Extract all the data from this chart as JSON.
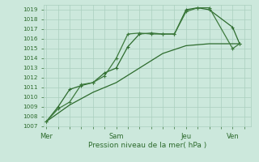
{
  "xlabel": "Pression niveau de la mer( hPa )",
  "ylim": [
    1007,
    1019.5
  ],
  "yticks": [
    1007,
    1008,
    1009,
    1010,
    1011,
    1012,
    1013,
    1014,
    1015,
    1016,
    1017,
    1018,
    1019
  ],
  "xtick_labels": [
    "Mer",
    "Sam",
    "Jeu",
    "Ven"
  ],
  "xtick_positions": [
    0,
    3,
    6,
    8
  ],
  "xlim": [
    -0.1,
    8.8
  ],
  "bg_color": "#cce8dc",
  "grid_color": "#aacfbe",
  "line_color_main": "#2d6b2d",
  "line_color_light": "#3d7a3d",
  "line1_x": [
    0,
    0.5,
    1.0,
    1.5,
    2.0,
    2.5,
    3.0,
    3.5,
    4.0,
    4.5,
    5.0,
    5.5,
    6.0,
    6.5,
    7.0,
    8.0,
    8.3
  ],
  "line1_y": [
    1007.5,
    1009.0,
    1010.8,
    1011.2,
    1011.5,
    1012.5,
    1013.0,
    1015.2,
    1016.5,
    1016.6,
    1016.5,
    1016.5,
    1019.0,
    1019.2,
    1019.0,
    1017.2,
    1015.5
  ],
  "line2_x": [
    0,
    0.5,
    1.0,
    1.5,
    2.0,
    2.5,
    3.0,
    3.5,
    4.0,
    4.5,
    5.0,
    5.5,
    6.0,
    6.5,
    7.0,
    8.0,
    8.3
  ],
  "line2_y": [
    1007.5,
    1008.8,
    1009.5,
    1011.3,
    1011.5,
    1012.2,
    1014.0,
    1016.5,
    1016.6,
    1016.5,
    1016.5,
    1016.5,
    1018.8,
    1019.2,
    1019.2,
    1015.0,
    1015.5
  ],
  "line3_x": [
    0,
    1.0,
    2.0,
    3.0,
    4.0,
    5.0,
    6.0,
    7.0,
    8.0,
    8.3
  ],
  "line3_y": [
    1007.5,
    1009.2,
    1010.5,
    1011.5,
    1013.0,
    1014.5,
    1015.3,
    1015.5,
    1015.5,
    1015.5
  ]
}
